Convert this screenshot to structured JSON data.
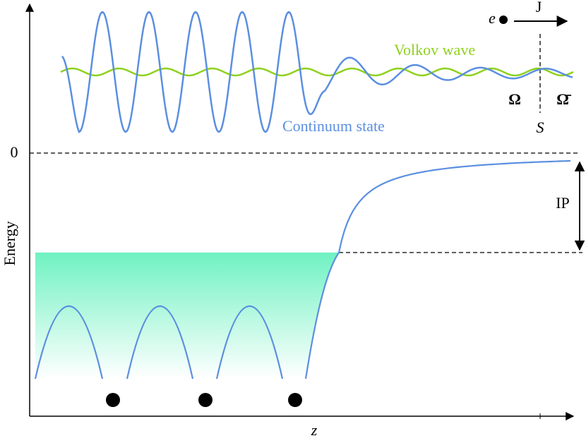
{
  "labels": {
    "volkov": "Volkov wave",
    "continuum": "Continuum state",
    "electron": "e",
    "current": "J",
    "omega": "Ω",
    "omega_bar": "Ω̄",
    "surface": "S",
    "zero": "0",
    "y_axis": "Energy",
    "ip": "IP",
    "x_axis": "z"
  }
}
